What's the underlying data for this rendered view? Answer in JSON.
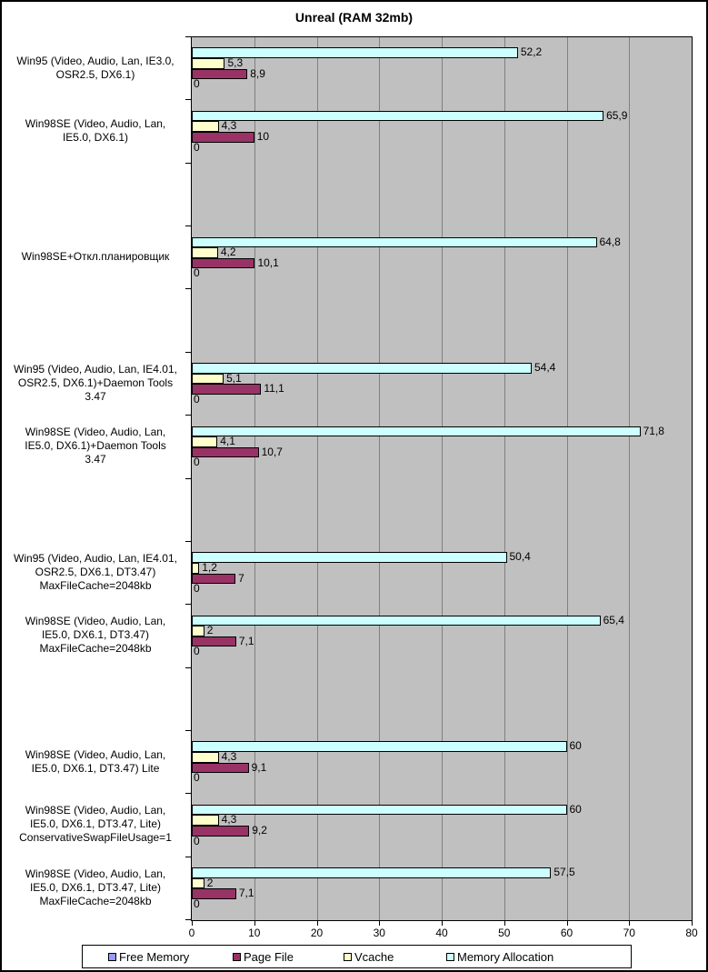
{
  "chart_data": {
    "type": "bar",
    "orientation": "horizontal",
    "title": "Unreal (RAM 32mb)",
    "plot_background": "#c0c0c0",
    "gridline_color": "#808080",
    "value_axis": {
      "min": 0,
      "max": 80,
      "ticks": [
        "0",
        "10",
        "20",
        "30",
        "40",
        "50",
        "60",
        "70",
        "80"
      ],
      "gridlines": [
        10,
        20,
        30,
        40,
        50,
        60,
        70
      ]
    },
    "num_category_slots": 14,
    "series": [
      {
        "name": "Free Memory",
        "color": "#9999ff"
      },
      {
        "name": "Page File",
        "color": "#993366"
      },
      {
        "name": "Vcache",
        "color": "#ffffcc"
      },
      {
        "name": "Memory Allocation",
        "color": "#ccffff"
      }
    ],
    "bar_render_order_top_to_bottom": [
      "Memory Allocation",
      "Vcache",
      "Page File",
      "Free Memory"
    ],
    "groups": [
      {
        "slot": 0,
        "label_lines": [
          "Win95 (Video, Audio, Lan, IE3.0,",
          "OSR2.5, DX6.1)"
        ],
        "bars": [
          {
            "series": "Memory Allocation",
            "value": 52.2,
            "label": "52,2"
          },
          {
            "series": "Vcache",
            "value": 5.3,
            "label": "5,3"
          },
          {
            "series": "Page File",
            "value": 8.9,
            "label": "8,9"
          },
          {
            "series": "Free Memory",
            "value": 0,
            "label": "0"
          }
        ]
      },
      {
        "slot": 1,
        "label_lines": [
          "Win98SE (Video, Audio, Lan,",
          "IE5.0, DX6.1)"
        ],
        "bars": [
          {
            "series": "Memory Allocation",
            "value": 65.9,
            "label": "65,9"
          },
          {
            "series": "Vcache",
            "value": 4.3,
            "label": "4,3"
          },
          {
            "series": "Page File",
            "value": 10,
            "label": "10"
          },
          {
            "series": "Free Memory",
            "value": 0,
            "label": "0"
          }
        ]
      },
      {
        "slot": 3,
        "label_lines": [
          "Win98SE+Откл.планировщик"
        ],
        "bars": [
          {
            "series": "Memory Allocation",
            "value": 64.8,
            "label": "64,8"
          },
          {
            "series": "Vcache",
            "value": 4.2,
            "label": "4,2"
          },
          {
            "series": "Page File",
            "value": 10.1,
            "label": "10,1"
          },
          {
            "series": "Free Memory",
            "value": 0,
            "label": "0"
          }
        ]
      },
      {
        "slot": 5,
        "label_lines": [
          "Win95 (Video, Audio, Lan, IE4.01,",
          "OSR2.5, DX6.1)+Daemon Tools",
          "3.47"
        ],
        "bars": [
          {
            "series": "Memory Allocation",
            "value": 54.4,
            "label": "54,4"
          },
          {
            "series": "Vcache",
            "value": 5.1,
            "label": "5,1"
          },
          {
            "series": "Page File",
            "value": 11.1,
            "label": "11,1"
          },
          {
            "series": "Free Memory",
            "value": 0,
            "label": "0"
          }
        ]
      },
      {
        "slot": 6,
        "label_lines": [
          "Win98SE (Video, Audio, Lan,",
          "IE5.0, DX6.1)+Daemon Tools",
          "3.47"
        ],
        "bars": [
          {
            "series": "Memory Allocation",
            "value": 71.8,
            "label": "71,8"
          },
          {
            "series": "Vcache",
            "value": 4.1,
            "label": "4,1"
          },
          {
            "series": "Page File",
            "value": 10.7,
            "label": "10,7"
          },
          {
            "series": "Free Memory",
            "value": 0,
            "label": "0"
          }
        ]
      },
      {
        "slot": 8,
        "label_lines": [
          "Win95 (Video, Audio, Lan, IE4.01,",
          "OSR2.5, DX6.1, DT3.47)",
          "MaxFileCache=2048kb"
        ],
        "bars": [
          {
            "series": "Memory Allocation",
            "value": 50.4,
            "label": "50,4"
          },
          {
            "series": "Vcache",
            "value": 1.2,
            "label": "1,2"
          },
          {
            "series": "Page File",
            "value": 7,
            "label": "7"
          },
          {
            "series": "Free Memory",
            "value": 0,
            "label": "0"
          }
        ]
      },
      {
        "slot": 9,
        "label_lines": [
          "Win98SE (Video, Audio, Lan,",
          "IE5.0, DX6.1, DT3.47)",
          "MaxFileCache=2048kb"
        ],
        "bars": [
          {
            "series": "Memory Allocation",
            "value": 65.4,
            "label": "65,4"
          },
          {
            "series": "Vcache",
            "value": 2,
            "label": "2"
          },
          {
            "series": "Page File",
            "value": 7.1,
            "label": "7,1"
          },
          {
            "series": "Free Memory",
            "value": 0,
            "label": "0"
          }
        ]
      },
      {
        "slot": 11,
        "label_lines": [
          "Win98SE (Video, Audio, Lan,",
          "IE5.0, DX6.1, DT3.47) Lite"
        ],
        "bars": [
          {
            "series": "Memory Allocation",
            "value": 60,
            "label": "60"
          },
          {
            "series": "Vcache",
            "value": 4.3,
            "label": "4,3"
          },
          {
            "series": "Page File",
            "value": 9.1,
            "label": "9,1"
          },
          {
            "series": "Free Memory",
            "value": 0,
            "label": "0"
          }
        ]
      },
      {
        "slot": 12,
        "label_lines": [
          "Win98SE (Video, Audio, Lan,",
          "IE5.0, DX6.1, DT3.47, Lite)",
          "ConservativeSwapFileUsage=1"
        ],
        "bars": [
          {
            "series": "Memory Allocation",
            "value": 60,
            "label": "60"
          },
          {
            "series": "Vcache",
            "value": 4.3,
            "label": "4,3"
          },
          {
            "series": "Page File",
            "value": 9.2,
            "label": "9,2"
          },
          {
            "series": "Free Memory",
            "value": 0,
            "label": "0"
          }
        ]
      },
      {
        "slot": 13,
        "label_lines": [
          "Win98SE (Video, Audio, Lan,",
          "IE5.0, DX6.1, DT3.47, Lite)",
          "MaxFileCache=2048kb"
        ],
        "bars": [
          {
            "series": "Memory Allocation",
            "value": 57.5,
            "label": "57,5"
          },
          {
            "series": "Vcache",
            "value": 2,
            "label": "2"
          },
          {
            "series": "Page File",
            "value": 7.1,
            "label": "7,1"
          },
          {
            "series": "Free Memory",
            "value": 0,
            "label": "0"
          }
        ]
      }
    ],
    "legend": {
      "position": "bottom",
      "entries": [
        "Free Memory",
        "Page File",
        "Vcache",
        "Memory Allocation"
      ]
    }
  }
}
